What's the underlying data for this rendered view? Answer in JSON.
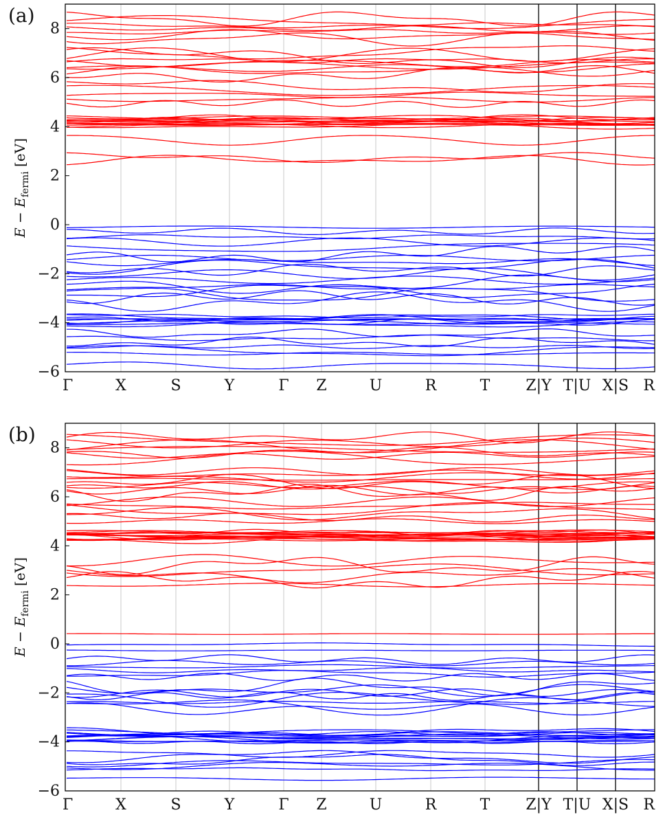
{
  "chart_data": [
    {
      "type": "line",
      "panel_label": "(a)",
      "ylabel": "E − E_fermi [eV]",
      "ylabel_main": "E − E",
      "ylabel_sub": "fermi",
      "ylabel_unit": " [eV]",
      "ylim": [
        -6,
        9
      ],
      "yticks": [
        -6,
        -4,
        -2,
        0,
        2,
        4,
        6,
        8
      ],
      "xticks": [
        "Γ",
        "X",
        "S",
        "Y",
        "Γ",
        "Z",
        "U",
        "R",
        "T",
        "Z|Y",
        "T|U",
        "X|S",
        "R"
      ],
      "segment_breaks": [
        "Z|Y",
        "T|U",
        "X|S"
      ],
      "grid": true,
      "conduction_band_color": "#ff0000",
      "valence_band_color": "#0000ff",
      "conduction_bands": [
        {
          "center": 2.65,
          "amp": 0.55,
          "count": 1
        },
        {
          "center": 3.1,
          "amp": 0.45,
          "count": 2
        },
        {
          "center": 4.2,
          "amp": 0.22,
          "count": 14
        },
        {
          "center": 5.3,
          "amp": 0.45,
          "count": 5
        },
        {
          "center": 6.6,
          "amp": 0.55,
          "count": 9
        },
        {
          "center": 8.0,
          "amp": 0.5,
          "count": 7
        }
      ],
      "valence_bands": [
        {
          "center": -0.1,
          "amp": 0.12,
          "count": 1
        },
        {
          "center": -0.6,
          "amp": 0.4,
          "count": 4
        },
        {
          "center": -1.6,
          "amp": 0.5,
          "count": 6
        },
        {
          "center": -2.7,
          "amp": 0.55,
          "count": 7
        },
        {
          "center": -3.9,
          "amp": 0.22,
          "count": 9
        },
        {
          "center": -4.8,
          "amp": 0.45,
          "count": 5
        },
        {
          "center": -5.5,
          "amp": 0.3,
          "count": 2
        }
      ]
    },
    {
      "type": "line",
      "panel_label": "(b)",
      "ylabel": "E − E_fermi [eV]",
      "ylabel_main": "E − E",
      "ylabel_sub": "fermi",
      "ylabel_unit": " [eV]",
      "ylim": [
        -6,
        9
      ],
      "yticks": [
        -6,
        -4,
        -2,
        0,
        2,
        4,
        6,
        8
      ],
      "xticks": [
        "Γ",
        "X",
        "S",
        "Y",
        "Γ",
        "Z",
        "U",
        "R",
        "T",
        "Z|Y",
        "T|U",
        "X|S",
        "R"
      ],
      "segment_breaks": [
        "Z|Y",
        "T|U",
        "X|S"
      ],
      "grid": true,
      "conduction_band_color": "#ff0000",
      "valence_band_color": "#0000ff",
      "conduction_bands": [
        {
          "center": 0.4,
          "amp": 0.03,
          "count": 1
        },
        {
          "center": 2.4,
          "amp": 0.12,
          "count": 1
        },
        {
          "center": 3.0,
          "amp": 0.5,
          "count": 5
        },
        {
          "center": 4.4,
          "amp": 0.22,
          "count": 16
        },
        {
          "center": 5.4,
          "amp": 0.5,
          "count": 6
        },
        {
          "center": 6.6,
          "amp": 0.55,
          "count": 9
        },
        {
          "center": 8.0,
          "amp": 0.55,
          "count": 8
        }
      ],
      "valence_bands": [
        {
          "center": -0.15,
          "amp": 0.15,
          "count": 2
        },
        {
          "center": -1.0,
          "amp": 0.45,
          "count": 6
        },
        {
          "center": -2.2,
          "amp": 0.55,
          "count": 8
        },
        {
          "center": -3.8,
          "amp": 0.28,
          "count": 14
        },
        {
          "center": -4.8,
          "amp": 0.4,
          "count": 6
        },
        {
          "center": -5.5,
          "amp": 0.1,
          "count": 1
        }
      ]
    }
  ]
}
